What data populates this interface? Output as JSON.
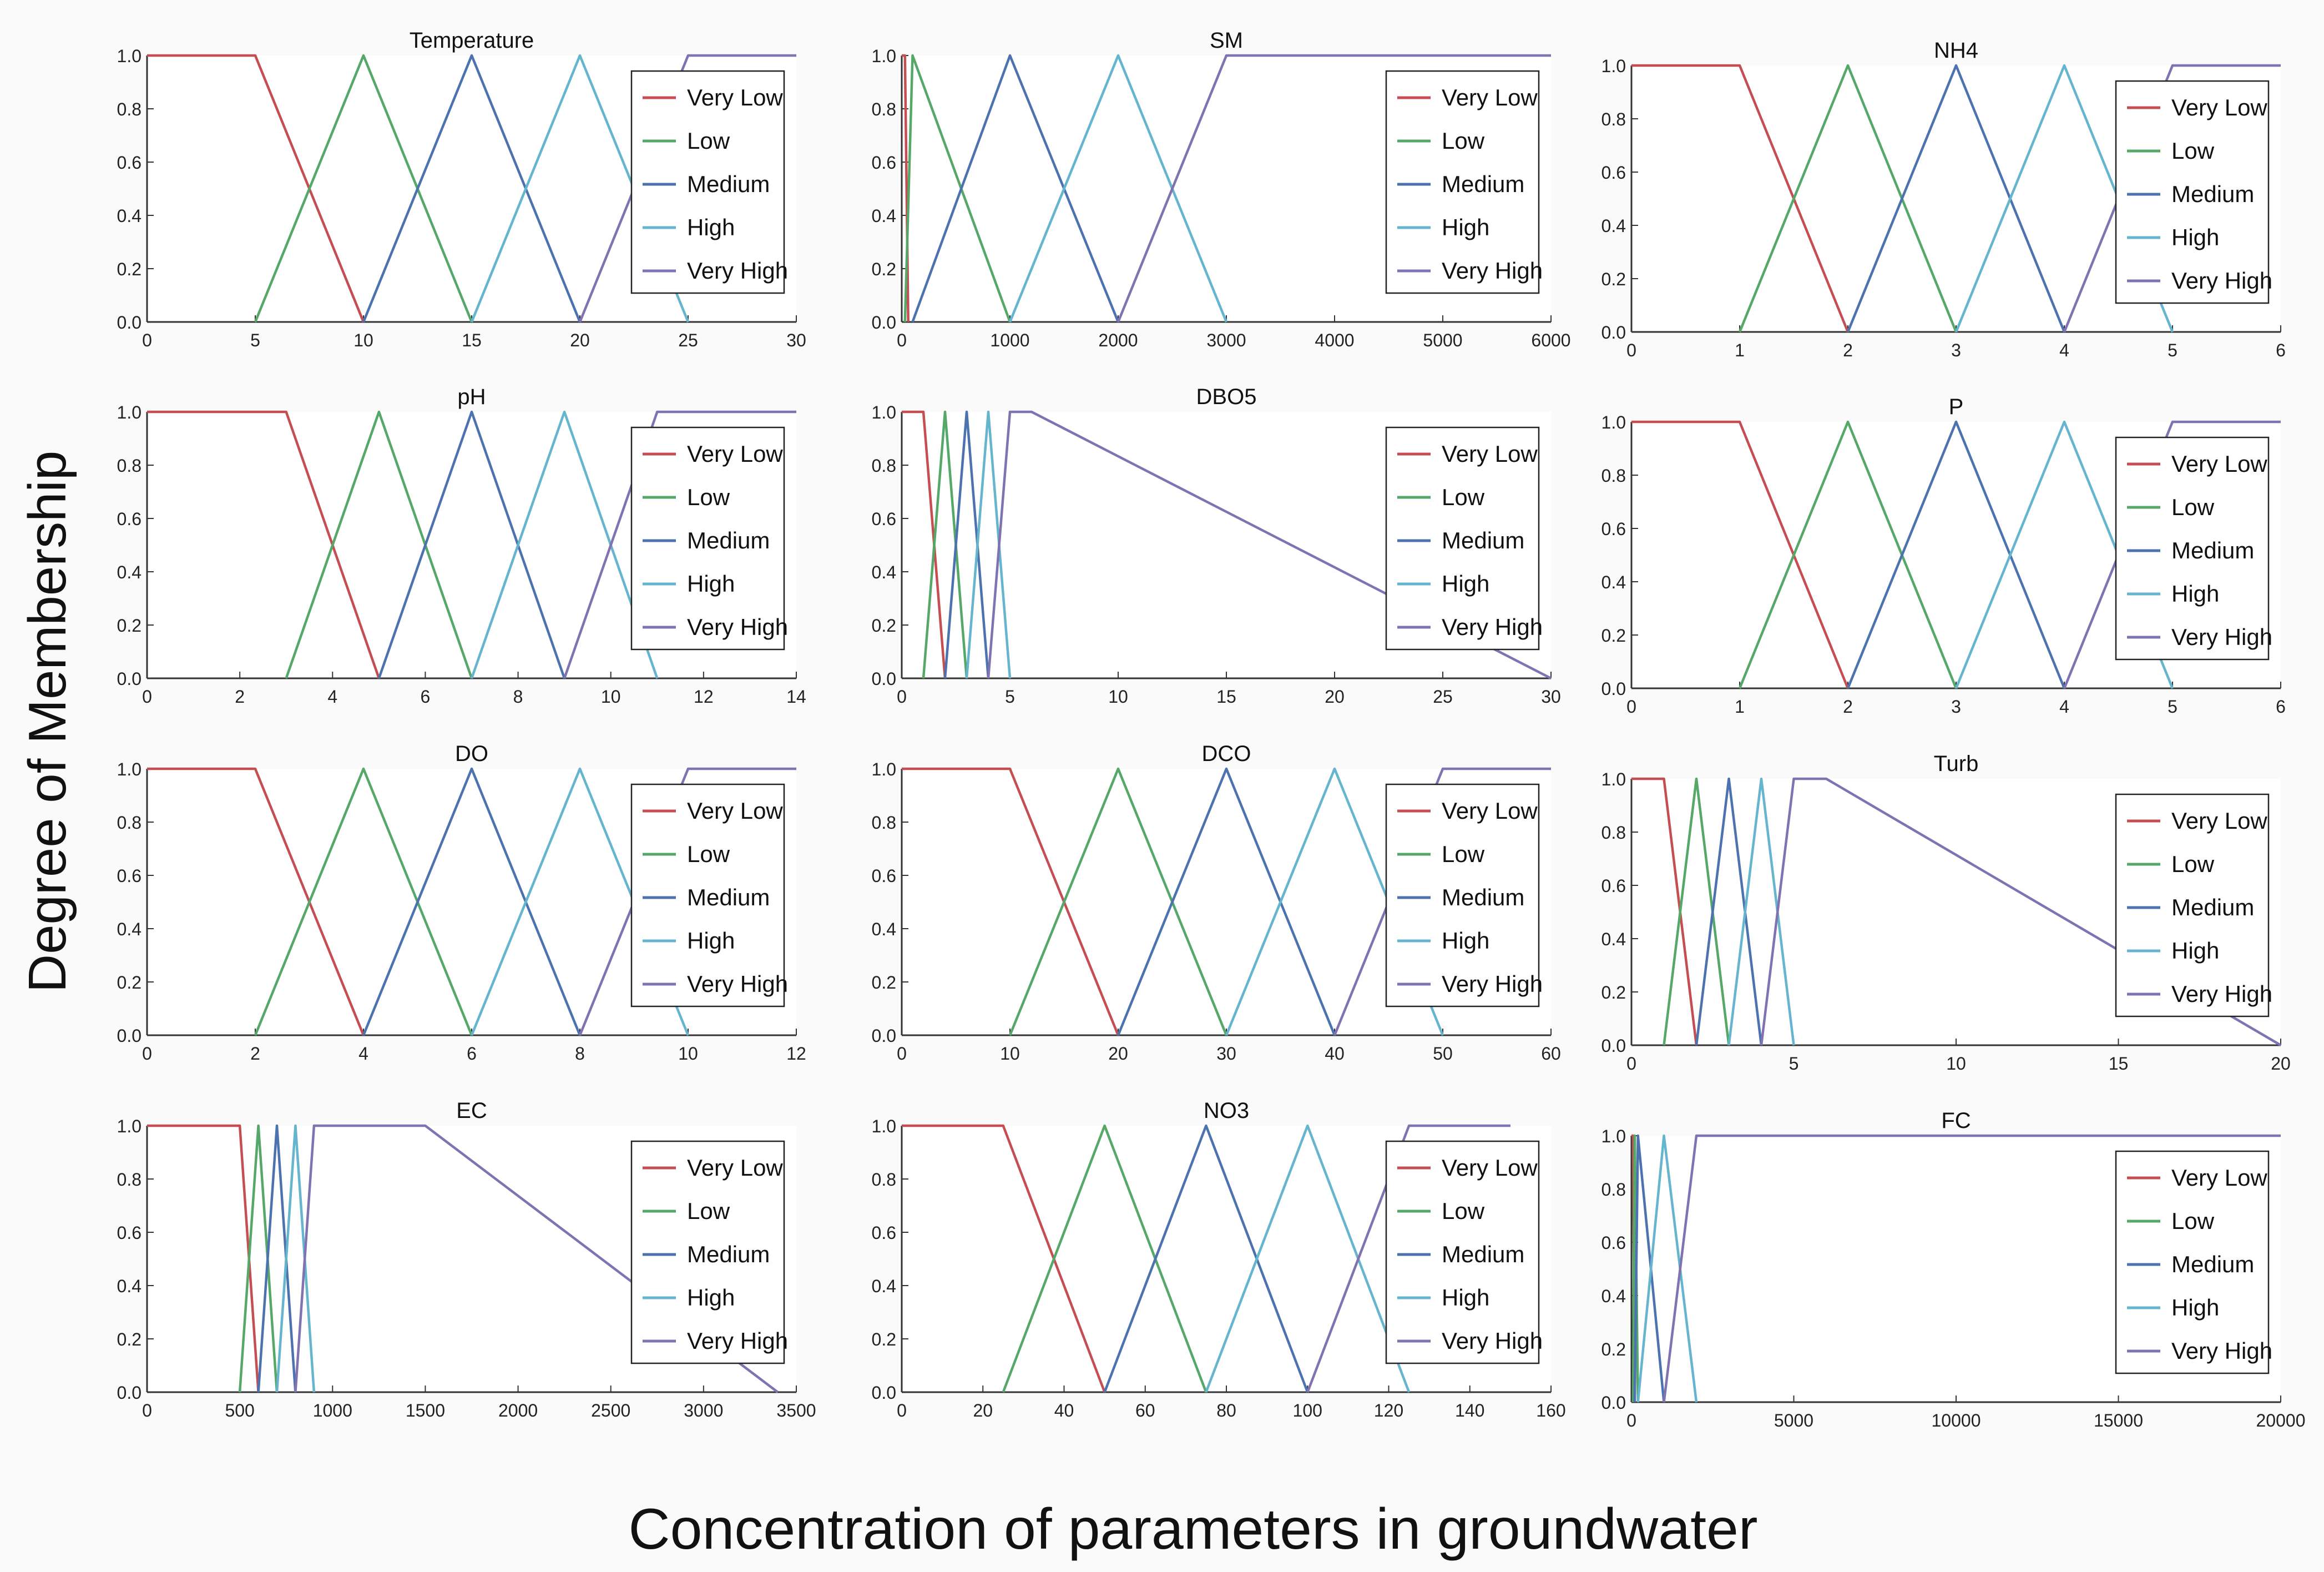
{
  "figure": {
    "ylabel": "Degree of Membership",
    "xlabel": "Concentration of parameters in groundwater"
  },
  "legend": {
    "labels": [
      "Very Low",
      "Low",
      "Medium",
      "High",
      "Very High"
    ],
    "colors": [
      "#c44e52",
      "#55a868",
      "#4c72b0",
      "#64b5cd",
      "#8172b2"
    ],
    "placement": "right"
  },
  "chart_data": [
    {
      "type": "line",
      "title": "Temperature",
      "ylim": [
        0,
        1
      ],
      "xlim": [
        0,
        30
      ],
      "xticks": [
        0,
        5,
        10,
        15,
        20,
        25,
        30
      ],
      "xtick_labels": [
        "0",
        "5",
        "10",
        "15",
        "20",
        "25",
        "30"
      ],
      "yticks": [
        "0.0",
        "0.2",
        "0.4",
        "0.6",
        "0.8",
        "1.0"
      ],
      "series": [
        {
          "name": "Very Low",
          "x": [
            0,
            5,
            10
          ],
          "y": [
            1,
            1,
            0
          ]
        },
        {
          "name": "Low",
          "x": [
            5,
            10,
            15
          ],
          "y": [
            0,
            1,
            0
          ]
        },
        {
          "name": "Medium",
          "x": [
            10,
            15,
            20
          ],
          "y": [
            0,
            1,
            0
          ]
        },
        {
          "name": "High",
          "x": [
            15,
            20,
            25
          ],
          "y": [
            0,
            1,
            0
          ]
        },
        {
          "name": "Very High",
          "x": [
            20,
            25,
            30
          ],
          "y": [
            0,
            1,
            1
          ]
        }
      ]
    },
    {
      "type": "line",
      "title": "SM",
      "ylim": [
        0,
        1
      ],
      "xlim": [
        0,
        6000
      ],
      "xticks": [
        0,
        1000,
        2000,
        3000,
        4000,
        5000,
        6000
      ],
      "xtick_labels": [
        "0",
        "1000",
        "2000",
        "3000",
        "4000",
        "5000",
        "6000"
      ],
      "yticks": [
        "0.0",
        "0.2",
        "0.4",
        "0.6",
        "0.8",
        "1.0"
      ],
      "series": [
        {
          "name": "Very Low",
          "x": [
            0,
            30,
            60
          ],
          "y": [
            1,
            1,
            0
          ]
        },
        {
          "name": "Low",
          "x": [
            30,
            100,
            1000
          ],
          "y": [
            0,
            1,
            0
          ]
        },
        {
          "name": "Medium",
          "x": [
            100,
            1000,
            2000
          ],
          "y": [
            0,
            1,
            0
          ]
        },
        {
          "name": "High",
          "x": [
            1000,
            2000,
            3000
          ],
          "y": [
            0,
            1,
            0
          ]
        },
        {
          "name": "Very High",
          "x": [
            2000,
            3000,
            6000
          ],
          "y": [
            0,
            1,
            1
          ]
        }
      ]
    },
    {
      "type": "line",
      "title": "NH4",
      "ylim": [
        0,
        1
      ],
      "xlim": [
        0,
        6
      ],
      "xticks": [
        0,
        1,
        2,
        3,
        4,
        5,
        6
      ],
      "xtick_labels": [
        "0",
        "1",
        "2",
        "3",
        "4",
        "5",
        "6"
      ],
      "yticks": [
        "0.0",
        "0.2",
        "0.4",
        "0.6",
        "0.8",
        "1.0"
      ],
      "series": [
        {
          "name": "Very Low",
          "x": [
            0,
            1,
            2
          ],
          "y": [
            1,
            1,
            0
          ]
        },
        {
          "name": "Low",
          "x": [
            1,
            2,
            3
          ],
          "y": [
            0,
            1,
            0
          ]
        },
        {
          "name": "Medium",
          "x": [
            2,
            3,
            4
          ],
          "y": [
            0,
            1,
            0
          ]
        },
        {
          "name": "High",
          "x": [
            3,
            4,
            5
          ],
          "y": [
            0,
            1,
            0
          ]
        },
        {
          "name": "Very High",
          "x": [
            4,
            5,
            6
          ],
          "y": [
            0,
            1,
            1
          ]
        }
      ]
    },
    {
      "type": "line",
      "title": "pH",
      "ylim": [
        0,
        1
      ],
      "xlim": [
        0,
        14
      ],
      "xticks": [
        0,
        2,
        4,
        6,
        8,
        10,
        12,
        14
      ],
      "xtick_labels": [
        "0",
        "2",
        "4",
        "6",
        "8",
        "10",
        "12",
        "14"
      ],
      "yticks": [
        "0.0",
        "0.2",
        "0.4",
        "0.6",
        "0.8",
        "1.0"
      ],
      "series": [
        {
          "name": "Very Low",
          "x": [
            0,
            3,
            5
          ],
          "y": [
            1,
            1,
            0
          ]
        },
        {
          "name": "Low",
          "x": [
            3,
            5,
            7
          ],
          "y": [
            0,
            1,
            0
          ]
        },
        {
          "name": "Medium",
          "x": [
            5,
            7,
            9
          ],
          "y": [
            0,
            1,
            0
          ]
        },
        {
          "name": "High",
          "x": [
            7,
            9,
            11
          ],
          "y": [
            0,
            1,
            0
          ]
        },
        {
          "name": "Very High",
          "x": [
            9,
            11,
            14
          ],
          "y": [
            0,
            1,
            1
          ]
        }
      ]
    },
    {
      "type": "line",
      "title": "DBO5",
      "ylim": [
        0,
        1
      ],
      "xlim": [
        0,
        30
      ],
      "xticks": [
        0,
        5,
        10,
        15,
        20,
        25,
        30
      ],
      "xtick_labels": [
        "0",
        "5",
        "10",
        "15",
        "20",
        "25",
        "30"
      ],
      "yticks": [
        "0.0",
        "0.2",
        "0.4",
        "0.6",
        "0.8",
        "1.0"
      ],
      "series": [
        {
          "name": "Very Low",
          "x": [
            0,
            1,
            2
          ],
          "y": [
            1,
            1,
            0
          ]
        },
        {
          "name": "Low",
          "x": [
            1,
            2,
            3
          ],
          "y": [
            0,
            1,
            0
          ]
        },
        {
          "name": "Medium",
          "x": [
            2,
            3,
            4
          ],
          "y": [
            0,
            1,
            0
          ]
        },
        {
          "name": "High",
          "x": [
            3,
            4,
            5
          ],
          "y": [
            0,
            1,
            0
          ]
        },
        {
          "name": "Very High",
          "x": [
            4,
            5,
            6,
            30
          ],
          "y": [
            0,
            1,
            1,
            0
          ]
        }
      ]
    },
    {
      "type": "line",
      "title": "P",
      "ylim": [
        0,
        1
      ],
      "xlim": [
        0,
        6
      ],
      "xticks": [
        0,
        1,
        2,
        3,
        4,
        5,
        6
      ],
      "xtick_labels": [
        "0",
        "1",
        "2",
        "3",
        "4",
        "5",
        "6"
      ],
      "yticks": [
        "0.0",
        "0.2",
        "0.4",
        "0.6",
        "0.8",
        "1.0"
      ],
      "series": [
        {
          "name": "Very Low",
          "x": [
            0,
            1,
            2
          ],
          "y": [
            1,
            1,
            0
          ]
        },
        {
          "name": "Low",
          "x": [
            1,
            2,
            3
          ],
          "y": [
            0,
            1,
            0
          ]
        },
        {
          "name": "Medium",
          "x": [
            2,
            3,
            4
          ],
          "y": [
            0,
            1,
            0
          ]
        },
        {
          "name": "High",
          "x": [
            3,
            4,
            5
          ],
          "y": [
            0,
            1,
            0
          ]
        },
        {
          "name": "Very High",
          "x": [
            4,
            5,
            6
          ],
          "y": [
            0,
            1,
            1
          ]
        }
      ]
    },
    {
      "type": "line",
      "title": "DO",
      "ylim": [
        0,
        1
      ],
      "xlim": [
        0,
        12
      ],
      "xticks": [
        0,
        2,
        4,
        6,
        8,
        10,
        12
      ],
      "xtick_labels": [
        "0",
        "2",
        "4",
        "6",
        "8",
        "10",
        "12"
      ],
      "yticks": [
        "0.0",
        "0.2",
        "0.4",
        "0.6",
        "0.8",
        "1.0"
      ],
      "series": [
        {
          "name": "Very Low",
          "x": [
            0,
            2,
            4
          ],
          "y": [
            1,
            1,
            0
          ]
        },
        {
          "name": "Low",
          "x": [
            2,
            4,
            6
          ],
          "y": [
            0,
            1,
            0
          ]
        },
        {
          "name": "Medium",
          "x": [
            4,
            6,
            8
          ],
          "y": [
            0,
            1,
            0
          ]
        },
        {
          "name": "High",
          "x": [
            6,
            8,
            10
          ],
          "y": [
            0,
            1,
            0
          ]
        },
        {
          "name": "Very High",
          "x": [
            8,
            10,
            12
          ],
          "y": [
            0,
            1,
            1
          ]
        }
      ]
    },
    {
      "type": "line",
      "title": "DCO",
      "ylim": [
        0,
        1
      ],
      "xlim": [
        0,
        60
      ],
      "xticks": [
        0,
        10,
        20,
        30,
        40,
        50,
        60
      ],
      "xtick_labels": [
        "0",
        "10",
        "20",
        "30",
        "40",
        "50",
        "60"
      ],
      "yticks": [
        "0.0",
        "0.2",
        "0.4",
        "0.6",
        "0.8",
        "1.0"
      ],
      "series": [
        {
          "name": "Very Low",
          "x": [
            0,
            10,
            20
          ],
          "y": [
            1,
            1,
            0
          ]
        },
        {
          "name": "Low",
          "x": [
            10,
            20,
            30
          ],
          "y": [
            0,
            1,
            0
          ]
        },
        {
          "name": "Medium",
          "x": [
            20,
            30,
            40
          ],
          "y": [
            0,
            1,
            0
          ]
        },
        {
          "name": "High",
          "x": [
            30,
            40,
            50
          ],
          "y": [
            0,
            1,
            0
          ]
        },
        {
          "name": "Very High",
          "x": [
            40,
            50,
            60
          ],
          "y": [
            0,
            1,
            1
          ]
        }
      ]
    },
    {
      "type": "line",
      "title": "Turb",
      "ylim": [
        0,
        1
      ],
      "xlim": [
        0,
        20
      ],
      "xticks": [
        0,
        5,
        10,
        15,
        20
      ],
      "xtick_labels": [
        "0",
        "5",
        "10",
        "15",
        "20"
      ],
      "yticks": [
        "0.0",
        "0.2",
        "0.4",
        "0.6",
        "0.8",
        "1.0"
      ],
      "series": [
        {
          "name": "Very Low",
          "x": [
            0,
            1,
            2
          ],
          "y": [
            1,
            1,
            0
          ]
        },
        {
          "name": "Low",
          "x": [
            1,
            2,
            3
          ],
          "y": [
            0,
            1,
            0
          ]
        },
        {
          "name": "Medium",
          "x": [
            2,
            3,
            4
          ],
          "y": [
            0,
            1,
            0
          ]
        },
        {
          "name": "High",
          "x": [
            3,
            4,
            5
          ],
          "y": [
            0,
            1,
            0
          ]
        },
        {
          "name": "Very High",
          "x": [
            4,
            5,
            6,
            20
          ],
          "y": [
            0,
            1,
            1,
            0
          ]
        }
      ]
    },
    {
      "type": "line",
      "title": "EC",
      "ylim": [
        0,
        1
      ],
      "xlim": [
        0,
        3500
      ],
      "xticks": [
        0,
        500,
        1000,
        1500,
        2000,
        2500,
        3000,
        3500
      ],
      "xtick_labels": [
        "0",
        "500",
        "1000",
        "1500",
        "2000",
        "2500",
        "3000",
        "3500"
      ],
      "yticks": [
        "0.0",
        "0.2",
        "0.4",
        "0.6",
        "0.8",
        "1.0"
      ],
      "series": [
        {
          "name": "Very Low",
          "x": [
            0,
            500,
            600
          ],
          "y": [
            1,
            1,
            0
          ]
        },
        {
          "name": "Low",
          "x": [
            500,
            600,
            700
          ],
          "y": [
            0,
            1,
            0
          ]
        },
        {
          "name": "Medium",
          "x": [
            600,
            700,
            800
          ],
          "y": [
            0,
            1,
            0
          ]
        },
        {
          "name": "High",
          "x": [
            700,
            800,
            900
          ],
          "y": [
            0,
            1,
            0
          ]
        },
        {
          "name": "Very High",
          "x": [
            800,
            900,
            1500,
            3400
          ],
          "y": [
            0,
            1,
            1,
            0
          ]
        }
      ]
    },
    {
      "type": "line",
      "title": "NO3",
      "ylim": [
        0,
        1
      ],
      "xlim": [
        0,
        160
      ],
      "xticks": [
        0,
        20,
        40,
        60,
        80,
        100,
        120,
        140,
        160
      ],
      "xtick_labels": [
        "0",
        "20",
        "40",
        "60",
        "80",
        "100",
        "120",
        "140",
        "160"
      ],
      "yticks": [
        "0.0",
        "0.2",
        "0.4",
        "0.6",
        "0.8",
        "1.0"
      ],
      "series": [
        {
          "name": "Very Low",
          "x": [
            0,
            25,
            50
          ],
          "y": [
            1,
            1,
            0
          ]
        },
        {
          "name": "Low",
          "x": [
            25,
            50,
            75
          ],
          "y": [
            0,
            1,
            0
          ]
        },
        {
          "name": "Medium",
          "x": [
            50,
            75,
            100
          ],
          "y": [
            0,
            1,
            0
          ]
        },
        {
          "name": "High",
          "x": [
            75,
            100,
            125
          ],
          "y": [
            0,
            1,
            0
          ]
        },
        {
          "name": "Very High",
          "x": [
            100,
            125,
            150
          ],
          "y": [
            0,
            1,
            1
          ]
        }
      ]
    },
    {
      "type": "line",
      "title": "FC",
      "ylim": [
        0,
        1
      ],
      "xlim": [
        0,
        20000
      ],
      "xticks": [
        0,
        5000,
        10000,
        15000,
        20000
      ],
      "xtick_labels": [
        "0",
        "5000",
        "10000",
        "15000",
        "20000"
      ],
      "yticks": [
        "0.0",
        "0.2",
        "0.4",
        "0.6",
        "0.8",
        "1.0"
      ],
      "series": [
        {
          "name": "Very Low",
          "x": [
            0,
            50,
            100
          ],
          "y": [
            1,
            1,
            0
          ]
        },
        {
          "name": "Low",
          "x": [
            50,
            100,
            200
          ],
          "y": [
            0,
            1,
            0
          ]
        },
        {
          "name": "Medium",
          "x": [
            100,
            200,
            1000
          ],
          "y": [
            0,
            1,
            0
          ]
        },
        {
          "name": "High",
          "x": [
            200,
            1000,
            2000
          ],
          "y": [
            0,
            1,
            0
          ]
        },
        {
          "name": "Very High",
          "x": [
            1000,
            2000,
            20000
          ],
          "y": [
            0,
            1,
            1
          ]
        }
      ]
    }
  ]
}
